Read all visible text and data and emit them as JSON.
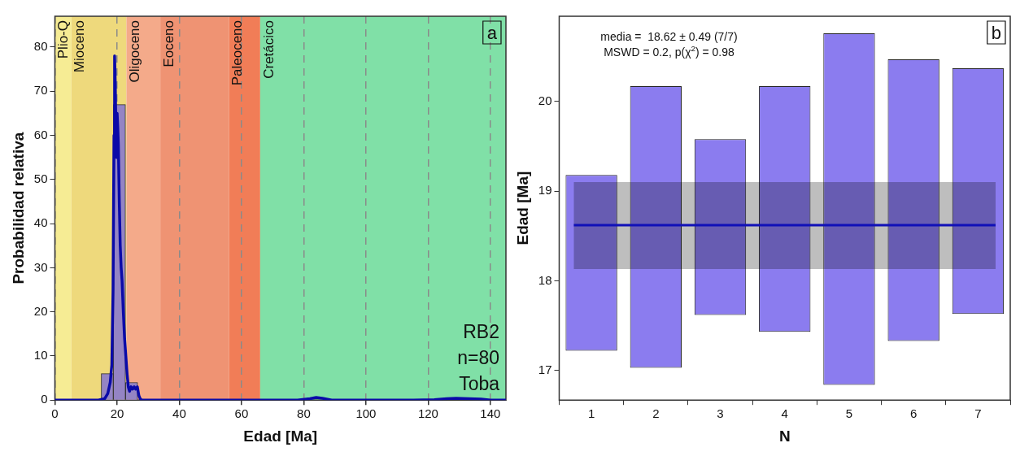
{
  "chart_data": [
    {
      "type": "histogram",
      "xlabel": "Edad [Ma]",
      "ylabel": "Probabilidad relativa",
      "bins": [
        14.9,
        18.8,
        22.7,
        26.6
      ],
      "values": [
        6,
        67,
        4
      ],
      "color": "#9484c4",
      "series": [
        {
          "type": "line",
          "color": "#0a0aa8",
          "x": [
            0,
            14,
            16,
            17,
            17.8,
            18.3,
            18.7,
            19,
            19.2,
            19.4,
            19.6,
            19.8,
            20,
            20.2,
            20.4,
            20.7,
            21,
            21.3,
            21.6,
            22,
            22.4,
            22.8,
            23.2,
            23.6,
            24,
            24.5,
            25,
            25.5,
            26,
            26.5,
            27,
            27.5,
            28,
            40,
            60,
            78,
            82,
            84,
            86,
            89,
            95,
            115,
            122,
            126,
            129,
            133,
            137,
            140,
            145
          ],
          "values": [
            0,
            0,
            0.3,
            1.5,
            4,
            8,
            25,
            60,
            78,
            72,
            62,
            55,
            65,
            62,
            58,
            45,
            35,
            30,
            27,
            20,
            14,
            10,
            6,
            3,
            2,
            3,
            2.5,
            3,
            2.5,
            3,
            1,
            0.2,
            0,
            0,
            0,
            0,
            0.3,
            0.6,
            0.4,
            0,
            0,
            0,
            0.1,
            0.3,
            0.4,
            0.3,
            0.2,
            0,
            0
          ]
        }
      ],
      "xlim": [
        0,
        145
      ],
      "xticks": [
        0,
        20,
        40,
        60,
        80,
        100,
        120,
        140
      ],
      "ylim": [
        0,
        87
      ],
      "yticks": [
        0,
        10,
        20,
        30,
        40,
        50,
        60,
        70,
        80
      ],
      "grid": "x",
      "bands": [
        {
          "axis": "x",
          "from": 0,
          "to": 5.3,
          "label": "Plio-Q",
          "color": "#f6ec94"
        },
        {
          "axis": "x",
          "from": 5.3,
          "to": 23,
          "label": "Mioceno",
          "color": "#eed97c"
        },
        {
          "axis": "x",
          "from": 23,
          "to": 33.9,
          "label": "Oligoceno",
          "color": "#f4aa8a"
        },
        {
          "axis": "x",
          "from": 33.9,
          "to": 56,
          "label": "Eoceno",
          "color": "#ef9373"
        },
        {
          "axis": "x",
          "from": 56,
          "to": 66,
          "label": "Paleoceno",
          "color": "#f17d57"
        },
        {
          "axis": "x",
          "from": 66,
          "to": 145,
          "label": "Cretácico",
          "color": "#80e0a7"
        }
      ],
      "annotations": [
        "a",
        "RB2",
        "n=80",
        "Toba"
      ]
    },
    {
      "type": "bar",
      "xlabel": "N",
      "ylabel": "Edad [Ma]",
      "categories": [
        "1",
        "2",
        "3",
        "4",
        "5",
        "6",
        "7"
      ],
      "base": [
        17.22,
        17.03,
        17.62,
        17.43,
        16.84,
        17.33,
        17.63
      ],
      "values": [
        1.96,
        3.14,
        1.96,
        2.74,
        3.92,
        3.14,
        2.74
      ],
      "color": "#8b7cef",
      "ylim": [
        16.67,
        20.95
      ],
      "yticks": [
        17,
        18,
        19,
        20
      ],
      "ref_lines": [
        {
          "axis": "y",
          "value": 18.62,
          "color": "#1010b8"
        }
      ],
      "bands": [
        {
          "axis": "y",
          "from": 18.13,
          "to": 19.1,
          "color": "#bebebe"
        }
      ],
      "annotations": [
        "b",
        "media =  18.62 ± 0.49 (7/7)",
        "MSWD = 0.2, p(χ$^{2}$) = 0.98"
      ]
    }
  ]
}
